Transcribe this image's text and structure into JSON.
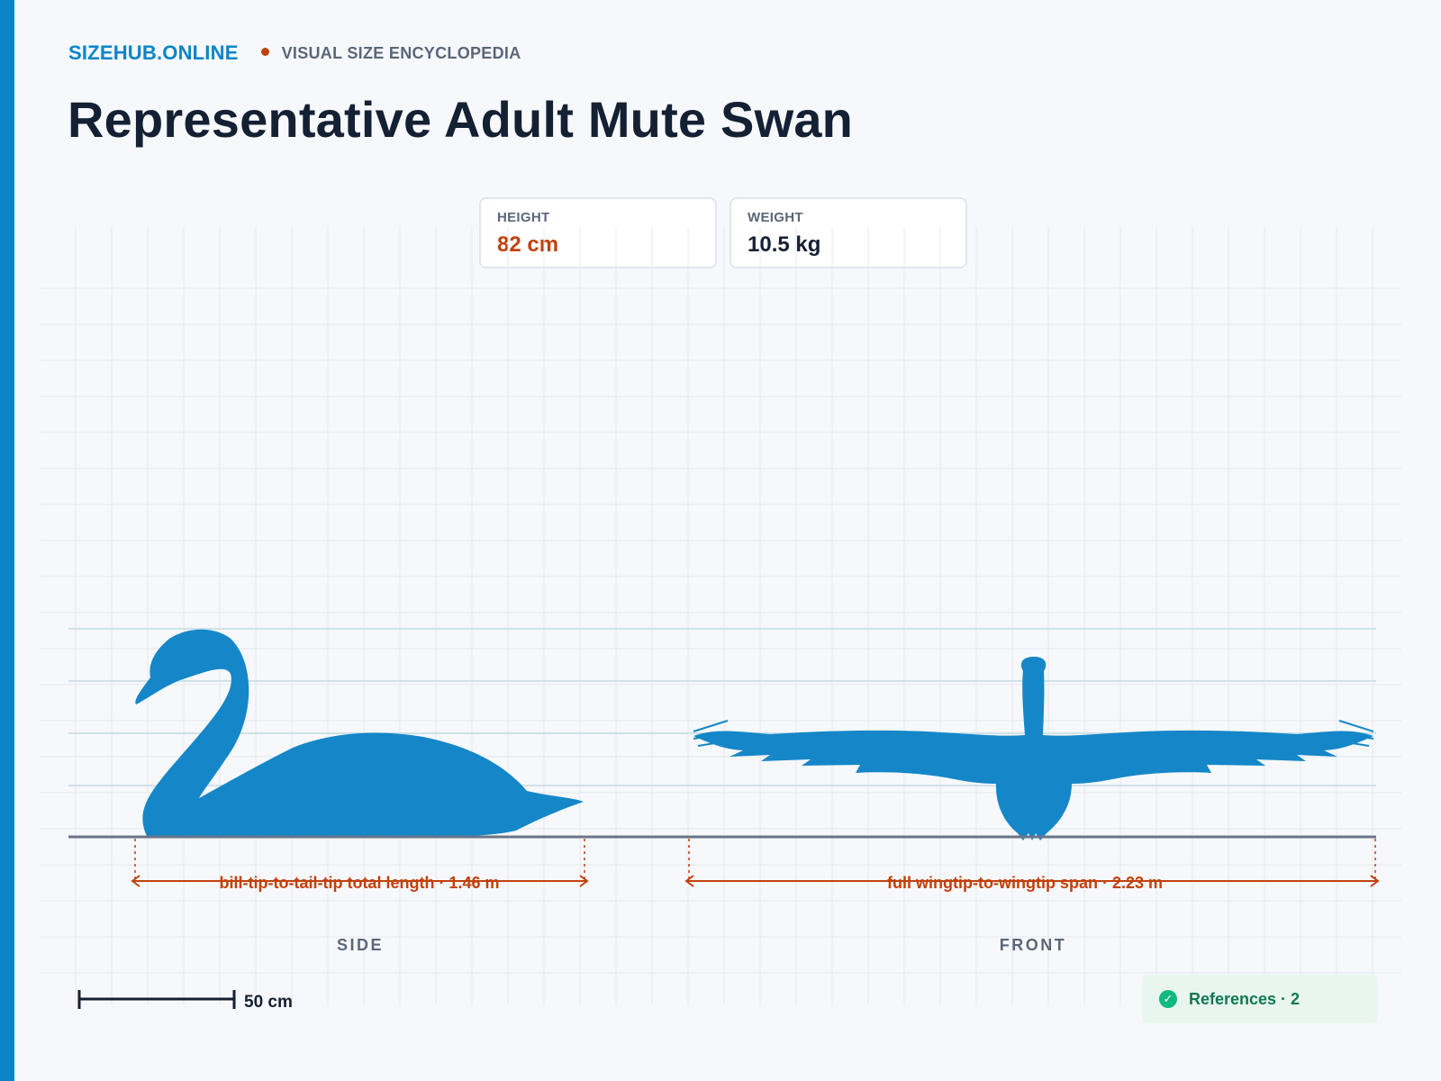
{
  "brand": {
    "name": "SIZEHUB.ONLINE",
    "tagline": "VISUAL SIZE ENCYCLOPEDIA"
  },
  "page": {
    "title": "Representative Adult Mute Swan"
  },
  "stats": {
    "height": {
      "label": "HEIGHT",
      "value": "82 cm"
    },
    "weight": {
      "label": "WEIGHT",
      "value": "10.5 kg"
    }
  },
  "views": {
    "side": {
      "label": "SIDE",
      "dimension_label": "bill-tip-to-tail-tip total length · 1.46 m",
      "total_length_m": 1.46
    },
    "front": {
      "label": "FRONT",
      "dimension_label": "full wingtip-to-wingtip span · 2.23 m",
      "wingspan_m": 2.23
    }
  },
  "scale_bar": {
    "label": "50 cm",
    "length_cm": 50
  },
  "references": {
    "label": "References · 2",
    "count": 2
  },
  "colors": {
    "accent": "#0a85c8",
    "silhouette": "#1587c8",
    "dimension": "#c2410c",
    "success": "#10b981"
  },
  "icons": {
    "references": "check-circle-icon",
    "marker": "dot-icon"
  }
}
